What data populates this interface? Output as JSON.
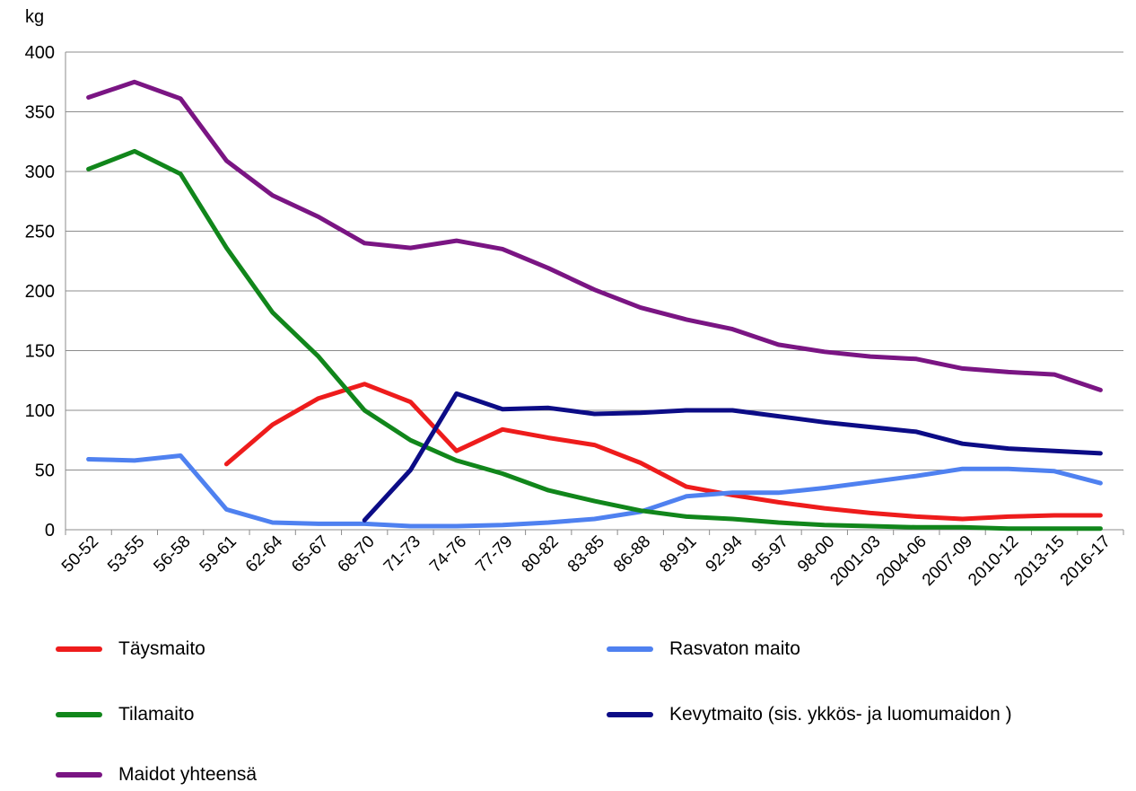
{
  "chart_data": {
    "type": "line",
    "ylabel": "kg",
    "ylim": [
      0,
      400
    ],
    "yticks": [
      "0",
      "50",
      "100",
      "150",
      "200",
      "250",
      "300",
      "350",
      "400"
    ],
    "grid": "horizontal",
    "legend_position": "bottom",
    "categories": [
      "50-52",
      "53-55",
      "56-58",
      "59-61",
      "62-64",
      "65-67",
      "68-70",
      "71-73",
      "74-76",
      "77-79",
      "80-82",
      "83-85",
      "86-88",
      "89-91",
      "92-94",
      "95-97",
      "98-00",
      "2001-03",
      "2004-06",
      "2007-09",
      "2010-12",
      "2013-15",
      "2016-17"
    ],
    "series": [
      {
        "name": "Täysmaito",
        "color": "#ee1c1c",
        "values": [
          null,
          null,
          null,
          55,
          88,
          110,
          122,
          107,
          66,
          84,
          77,
          71,
          56,
          36,
          29,
          23,
          18,
          14,
          11,
          9,
          11,
          12,
          12
        ]
      },
      {
        "name": "Rasvaton maito",
        "color": "#4f81f0",
        "values": [
          59,
          58,
          62,
          17,
          6,
          5,
          5,
          3,
          3,
          4,
          6,
          9,
          15,
          28,
          31,
          31,
          35,
          40,
          45,
          51,
          51,
          49,
          39
        ]
      },
      {
        "name": "Tilamaito",
        "color": "#11861b",
        "values": [
          302,
          317,
          298,
          236,
          182,
          145,
          100,
          75,
          58,
          47,
          33,
          24,
          16,
          11,
          9,
          6,
          4,
          3,
          2,
          2,
          1,
          1,
          1
        ]
      },
      {
        "name": "Kevytmaito (sis. ykkös- ja luomumaidon )",
        "color": "#0c0c86",
        "values": [
          null,
          null,
          null,
          null,
          null,
          null,
          8,
          50,
          114,
          101,
          102,
          97,
          98,
          100,
          100,
          95,
          90,
          86,
          82,
          72,
          68,
          66,
          64
        ]
      },
      {
        "name": "Maidot yhteensä",
        "color": "#7a1583",
        "values": [
          362,
          375,
          361,
          309,
          280,
          262,
          240,
          236,
          242,
          235,
          219,
          201,
          186,
          176,
          168,
          155,
          149,
          145,
          143,
          135,
          132,
          130,
          117
        ]
      }
    ]
  }
}
